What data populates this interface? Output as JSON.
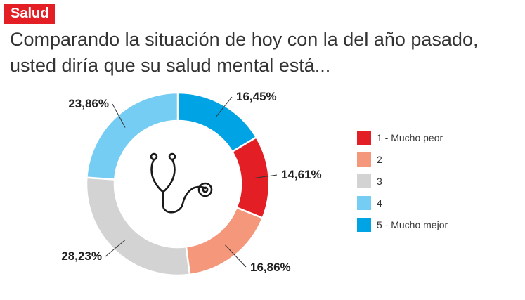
{
  "header": {
    "tag": "Salud",
    "title_line1": "Comparando la situación de hoy con la del año pasado,",
    "title_line2": "usted diría que su salud mental está..."
  },
  "icon": "stethoscope-icon",
  "chart_data": {
    "type": "pie",
    "variant": "donut",
    "title": "Comparando la situación de hoy con la del año pasado, usted diría que su salud mental está...",
    "series": [
      {
        "name": "1 - Mucho peor",
        "value": 14.61,
        "label": "14,61%",
        "color": "#e31e24"
      },
      {
        "name": "2",
        "value": 16.86,
        "label": "16,86%",
        "color": "#f4977a"
      },
      {
        "name": "3",
        "value": 28.23,
        "label": "28,23%",
        "color": "#d3d3d3"
      },
      {
        "name": "4",
        "value": 23.86,
        "label": "23,86%",
        "color": "#76cdf3"
      },
      {
        "name": "5 - Mucho mejor",
        "value": 16.45,
        "label": "16,45%",
        "color": "#00a3e4"
      }
    ],
    "order_clockwise_from_top": [
      "5 - Mucho mejor",
      "1 - Mucho peor",
      "2",
      "3",
      "4"
    ],
    "legend_position": "right"
  }
}
